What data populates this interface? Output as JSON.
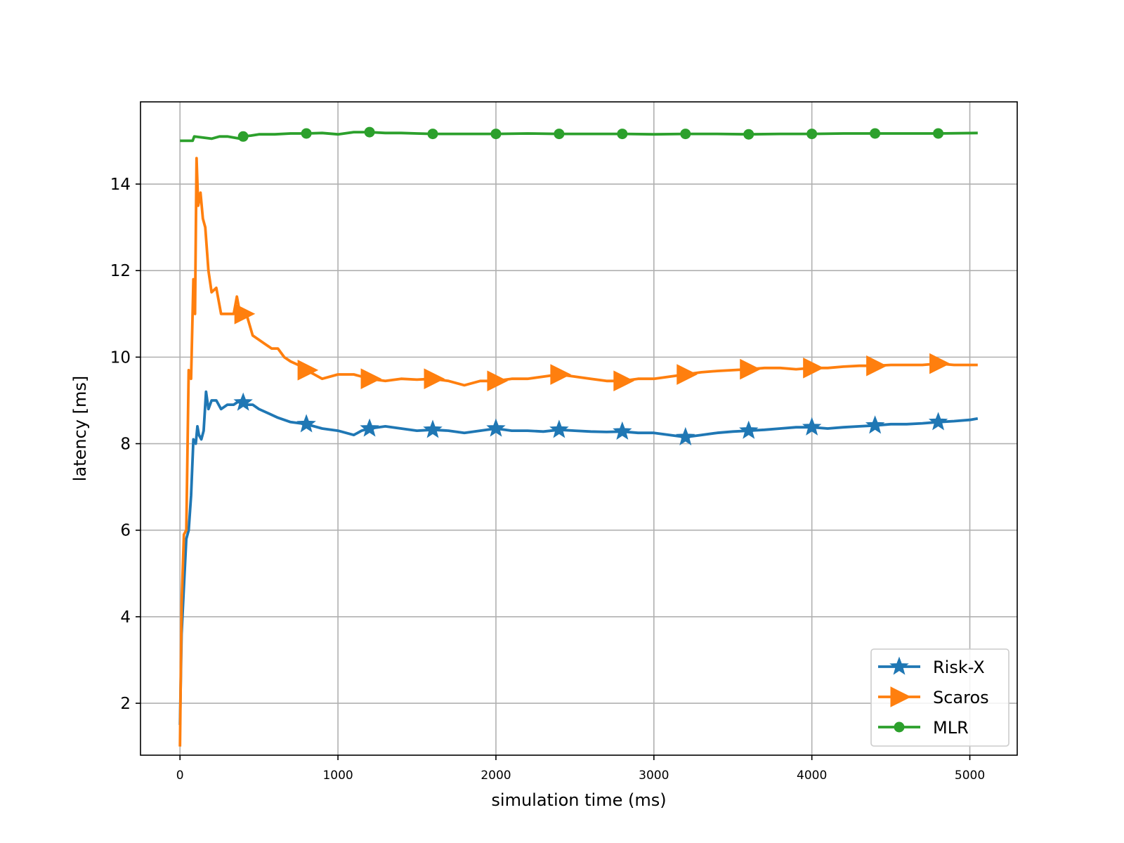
{
  "chart_data": {
    "type": "line",
    "title": "",
    "xlabel": "simulation time (ms)",
    "ylabel": "latency [ms]",
    "xlim": [
      -250,
      5300
    ],
    "ylim": [
      0.8,
      15.9
    ],
    "xticks": [
      0,
      1000,
      2000,
      3000,
      4000,
      5000
    ],
    "yticks": [
      2,
      4,
      6,
      8,
      10,
      12,
      14
    ],
    "grid": true,
    "legend_position": "bottom-right",
    "series": [
      {
        "name": "Risk-X",
        "color": "#1f77b4",
        "marker": "star",
        "x": [
          0,
          10,
          25,
          40,
          55,
          70,
          85,
          100,
          110,
          120,
          135,
          150,
          165,
          180,
          200,
          230,
          260,
          300,
          340,
          380,
          420,
          460,
          500,
          560,
          620,
          700,
          800,
          900,
          1000,
          1100,
          1150,
          1200,
          1300,
          1400,
          1500,
          1600,
          1700,
          1800,
          1900,
          2000,
          2100,
          2200,
          2300,
          2400,
          2500,
          2600,
          2700,
          2800,
          2900,
          3000,
          3100,
          3200,
          3300,
          3400,
          3500,
          3600,
          3700,
          3800,
          3900,
          4000,
          4100,
          4200,
          4300,
          4400,
          4500,
          4600,
          4700,
          4800,
          4900,
          5000,
          5050
        ],
        "values": [
          1.5,
          3.6,
          4.7,
          5.8,
          6.0,
          6.8,
          8.1,
          8.0,
          8.4,
          8.2,
          8.1,
          8.3,
          9.2,
          8.8,
          9.0,
          9.0,
          8.8,
          8.9,
          8.9,
          9.0,
          8.9,
          8.9,
          8.8,
          8.7,
          8.6,
          8.5,
          8.45,
          8.35,
          8.3,
          8.2,
          8.3,
          8.35,
          8.4,
          8.35,
          8.3,
          8.32,
          8.3,
          8.25,
          8.3,
          8.35,
          8.3,
          8.3,
          8.28,
          8.32,
          8.3,
          8.28,
          8.27,
          8.28,
          8.25,
          8.25,
          8.2,
          8.15,
          8.2,
          8.25,
          8.28,
          8.3,
          8.32,
          8.35,
          8.38,
          8.38,
          8.35,
          8.38,
          8.4,
          8.42,
          8.45,
          8.45,
          8.47,
          8.5,
          8.52,
          8.55,
          8.58
        ]
      },
      {
        "name": "Scaros",
        "color": "#ff7f0e",
        "marker": "triangle-right",
        "x": [
          0,
          10,
          25,
          40,
          55,
          70,
          85,
          95,
          105,
          115,
          130,
          145,
          160,
          180,
          200,
          230,
          260,
          300,
          340,
          360,
          380,
          420,
          460,
          500,
          540,
          580,
          620,
          660,
          700,
          760,
          800,
          850,
          900,
          1000,
          1100,
          1200,
          1300,
          1400,
          1500,
          1600,
          1700,
          1800,
          1900,
          2000,
          2100,
          2200,
          2300,
          2400,
          2500,
          2600,
          2700,
          2800,
          2900,
          3000,
          3100,
          3200,
          3300,
          3400,
          3500,
          3600,
          3700,
          3800,
          3900,
          4000,
          4100,
          4200,
          4300,
          4400,
          4500,
          4600,
          4700,
          4800,
          4900,
          5000,
          5050
        ],
        "values": [
          1.0,
          4.3,
          5.9,
          6.0,
          9.7,
          9.5,
          11.8,
          11.0,
          14.6,
          13.5,
          13.8,
          13.2,
          13.0,
          12.0,
          11.5,
          11.6,
          11.0,
          11.0,
          11.0,
          11.4,
          11.0,
          11.0,
          10.5,
          10.4,
          10.3,
          10.2,
          10.2,
          10.0,
          9.9,
          9.8,
          9.7,
          9.6,
          9.5,
          9.6,
          9.6,
          9.5,
          9.45,
          9.5,
          9.48,
          9.5,
          9.45,
          9.35,
          9.45,
          9.45,
          9.5,
          9.5,
          9.55,
          9.6,
          9.55,
          9.5,
          9.45,
          9.45,
          9.5,
          9.5,
          9.55,
          9.6,
          9.65,
          9.68,
          9.7,
          9.72,
          9.75,
          9.75,
          9.72,
          9.75,
          9.75,
          9.78,
          9.8,
          9.8,
          9.82,
          9.82,
          9.82,
          9.85,
          9.82,
          9.82,
          9.82
        ]
      },
      {
        "name": "MLR",
        "color": "#2ca02c",
        "marker": "circle",
        "x": [
          0,
          80,
          90,
          200,
          250,
          300,
          380,
          400,
          450,
          500,
          600,
          700,
          800,
          900,
          1000,
          1100,
          1200,
          1300,
          1400,
          1500,
          1600,
          1800,
          2000,
          2200,
          2400,
          2600,
          2800,
          3000,
          3200,
          3400,
          3600,
          3800,
          4000,
          4200,
          4400,
          4600,
          4800,
          5050
        ],
        "values": [
          15.0,
          15.0,
          15.1,
          15.05,
          15.1,
          15.1,
          15.05,
          15.1,
          15.12,
          15.15,
          15.15,
          15.17,
          15.17,
          15.18,
          15.15,
          15.2,
          15.2,
          15.18,
          15.18,
          15.17,
          15.16,
          15.16,
          15.16,
          15.17,
          15.16,
          15.16,
          15.16,
          15.15,
          15.16,
          15.16,
          15.15,
          15.16,
          15.16,
          15.17,
          15.17,
          15.17,
          15.17,
          15.18
        ]
      }
    ],
    "marker_x": [
      400,
      800,
      1200,
      1600,
      2000,
      2400,
      2800,
      3200,
      3600,
      4000,
      4400,
      4800
    ]
  }
}
